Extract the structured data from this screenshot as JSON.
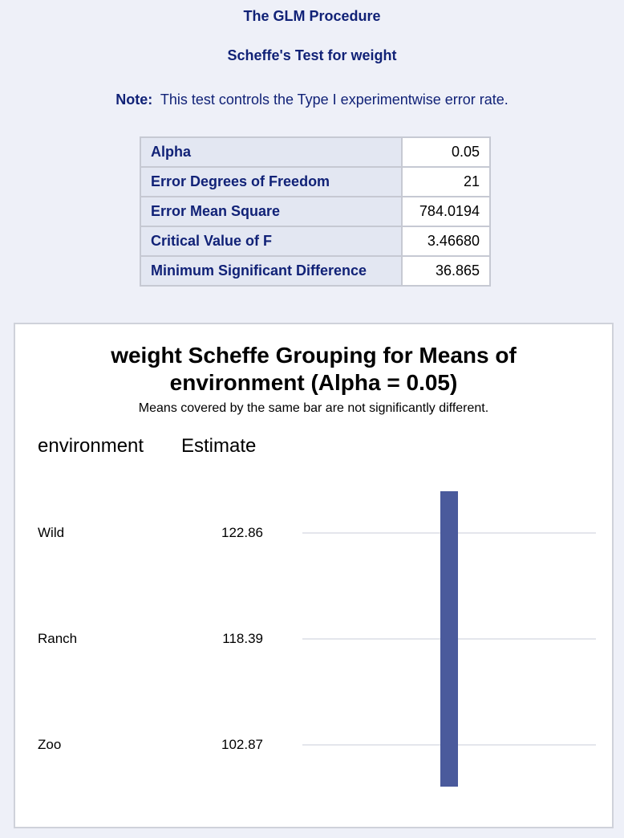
{
  "header": {
    "procedure_title": "The GLM Procedure",
    "test_title": "Scheffe's Test for weight",
    "note_label": "Note:",
    "note_text": "This test controls the Type I experimentwise error rate."
  },
  "stats_table": {
    "rows": [
      {
        "label": "Alpha",
        "value": "0.05"
      },
      {
        "label": "Error Degrees of Freedom",
        "value": "21"
      },
      {
        "label": "Error Mean Square",
        "value": "784.0194"
      },
      {
        "label": "Critical Value of F",
        "value": "3.46680"
      },
      {
        "label": "Minimum Significant Difference",
        "value": "36.865"
      }
    ]
  },
  "chart": {
    "title_line1": "weight Scheffe Grouping for Means of",
    "title_line2": "environment (Alpha = 0.05)",
    "subtitle": "Means covered by the same bar are not significantly different.",
    "col_group": "environment",
    "col_estimate": "Estimate",
    "bar_color": "#4a5a9c",
    "gridline_color": "#e4e6ec"
  },
  "chart_data": {
    "type": "table",
    "groups": [
      {
        "environment": "Wild",
        "estimate": "122.86"
      },
      {
        "environment": "Ranch",
        "estimate": "118.39"
      },
      {
        "environment": "Zoo",
        "estimate": "102.87"
      }
    ],
    "grouping_bars": [
      {
        "covers": [
          "Wild",
          "Ranch",
          "Zoo"
        ]
      }
    ]
  }
}
